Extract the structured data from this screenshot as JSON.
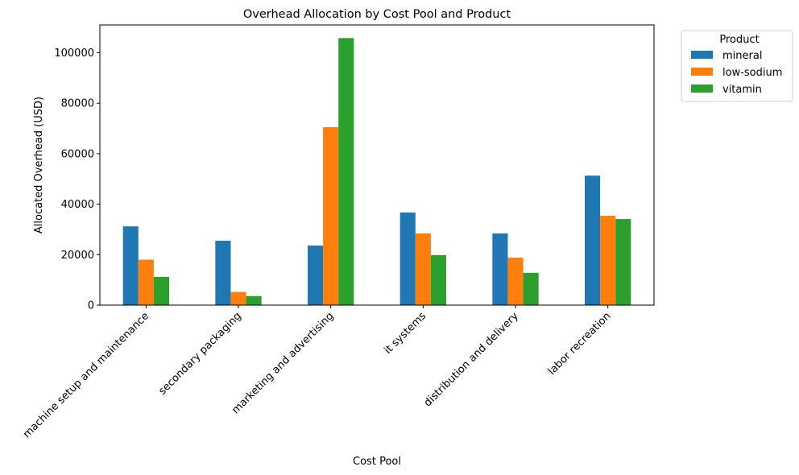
{
  "chart_data": {
    "type": "bar",
    "title": "Overhead Allocation by Cost Pool and Product",
    "xlabel": "Cost Pool",
    "ylabel": "Allocated Overhead (USD)",
    "categories": [
      "machine setup and maintenance",
      "secondary packaging",
      "marketing and advertising",
      "it systems",
      "distribution and delivery",
      "labor recreation"
    ],
    "series": [
      {
        "name": "mineral",
        "color": "#1f77b4",
        "values": [
          31200,
          25500,
          23600,
          36700,
          28400,
          51300
        ]
      },
      {
        "name": "low-sodium",
        "color": "#ff7f0e",
        "values": [
          18000,
          5200,
          70500,
          28400,
          18800,
          35400
        ]
      },
      {
        "name": "vitamin",
        "color": "#2ca02c",
        "values": [
          11200,
          3600,
          105800,
          19800,
          12800,
          34100
        ]
      }
    ],
    "ylim": [
      0,
      111000
    ],
    "yticks": [
      0,
      20000,
      40000,
      60000,
      80000,
      100000
    ],
    "grid": false,
    "legend": {
      "title": "Product",
      "placement": "outside-top-right"
    }
  }
}
